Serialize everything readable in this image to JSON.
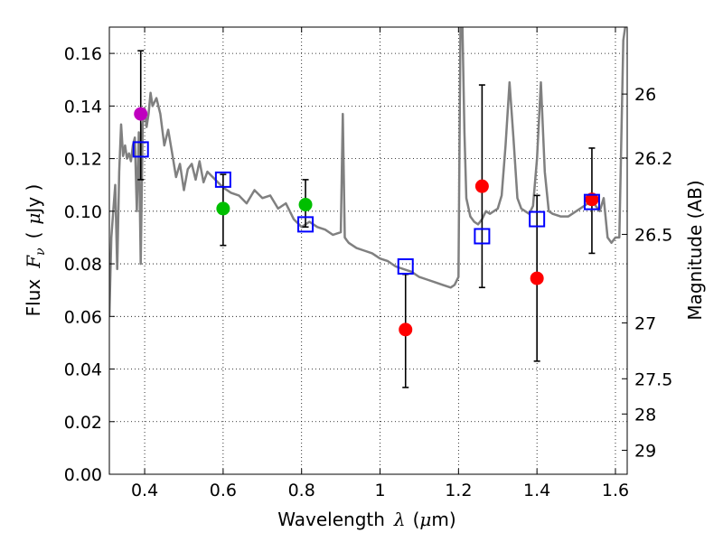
{
  "chart_data": {
    "type": "scatter",
    "xlabel_prefix": "Wavelength",
    "xlabel_symbol": "λ",
    "xlabel_unit_open": "(",
    "xlabel_unit_mu": "μ",
    "xlabel_unit_rest": "m)",
    "ylabel_prefix": "Flux",
    "ylabel_symbol": "F",
    "ylabel_sub": "ν",
    "ylabel_unit_open": "(",
    "ylabel_unit_mu": "μ",
    "ylabel_unit_rest": "Jy )",
    "y2label": "Magnitude (AB)",
    "xlim": [
      0.31,
      1.63
    ],
    "ylim": [
      0.0,
      0.17
    ],
    "xticks": [
      0.4,
      0.6,
      0.8,
      1.0,
      1.2,
      1.4,
      1.6
    ],
    "xtick_labels": [
      "0.4",
      "0.6",
      "0.8",
      "1",
      "1.2",
      "1.4",
      "1.6"
    ],
    "yticks": [
      0.0,
      0.02,
      0.04,
      0.06,
      0.08,
      0.1,
      0.12,
      0.14,
      0.16
    ],
    "ytick_labels": [
      "0.00",
      "0.02",
      "0.04",
      "0.06",
      "0.08",
      "0.10",
      "0.12",
      "0.14",
      "0.16"
    ],
    "y2ticks": [
      26,
      26.2,
      26.5,
      27,
      27.5,
      28,
      29
    ],
    "y2tick_labels": [
      "26",
      "26.2",
      "26.5",
      "27",
      "27.5",
      "28",
      "29"
    ],
    "grid": true,
    "observed": [
      {
        "x": 0.39,
        "y": 0.137,
        "err_low": 0.112,
        "err_high": 0.161,
        "color": "#bf00bf"
      },
      {
        "x": 0.6,
        "y": 0.101,
        "err_low": 0.087,
        "err_high": 0.114,
        "color": "#00bf00"
      },
      {
        "x": 0.81,
        "y": 0.1025,
        "err_low": 0.094,
        "err_high": 0.112,
        "color": "#00bf00"
      },
      {
        "x": 1.065,
        "y": 0.055,
        "err_low": 0.033,
        "err_high": 0.076,
        "color": "#ff0000"
      },
      {
        "x": 1.26,
        "y": 0.1095,
        "err_low": 0.071,
        "err_high": 0.148,
        "color": "#ff0000"
      },
      {
        "x": 1.4,
        "y": 0.0745,
        "err_low": 0.043,
        "err_high": 0.106,
        "color": "#ff0000"
      },
      {
        "x": 1.54,
        "y": 0.1045,
        "err_low": 0.084,
        "err_high": 0.124,
        "color": "#ff0000"
      }
    ],
    "model_photometry": {
      "color": "#0000ff",
      "points": [
        {
          "x": 0.39,
          "y": 0.1235
        },
        {
          "x": 0.6,
          "y": 0.112
        },
        {
          "x": 0.81,
          "y": 0.095
        },
        {
          "x": 1.065,
          "y": 0.079
        },
        {
          "x": 1.26,
          "y": 0.0905
        },
        {
          "x": 1.4,
          "y": 0.097
        },
        {
          "x": 1.54,
          "y": 0.1035
        }
      ]
    },
    "sed_model": {
      "color": "#808080",
      "x": [
        0.31,
        0.315,
        0.32,
        0.325,
        0.33,
        0.335,
        0.34,
        0.345,
        0.35,
        0.355,
        0.36,
        0.365,
        0.37,
        0.375,
        0.38,
        0.385,
        0.39,
        0.395,
        0.4,
        0.405,
        0.41,
        0.415,
        0.42,
        0.43,
        0.44,
        0.45,
        0.46,
        0.47,
        0.48,
        0.49,
        0.5,
        0.51,
        0.52,
        0.53,
        0.54,
        0.55,
        0.56,
        0.58,
        0.6,
        0.62,
        0.64,
        0.66,
        0.68,
        0.7,
        0.72,
        0.74,
        0.76,
        0.78,
        0.8,
        0.82,
        0.84,
        0.86,
        0.88,
        0.9,
        0.905,
        0.91,
        0.915,
        0.92,
        0.94,
        0.96,
        0.98,
        1.0,
        1.02,
        1.04,
        1.06,
        1.08,
        1.1,
        1.12,
        1.14,
        1.16,
        1.18,
        1.19,
        1.2,
        1.205,
        1.21,
        1.215,
        1.22,
        1.23,
        1.24,
        1.25,
        1.26,
        1.27,
        1.28,
        1.29,
        1.3,
        1.31,
        1.32,
        1.33,
        1.34,
        1.35,
        1.36,
        1.37,
        1.38,
        1.39,
        1.4,
        1.41,
        1.42,
        1.43,
        1.44,
        1.46,
        1.48,
        1.5,
        1.52,
        1.54,
        1.56,
        1.57,
        1.58,
        1.59,
        1.6,
        1.61,
        1.62,
        1.625
      ],
      "y": [
        0.06,
        0.09,
        0.1,
        0.11,
        0.078,
        0.115,
        0.133,
        0.121,
        0.125,
        0.12,
        0.122,
        0.119,
        0.125,
        0.128,
        0.1,
        0.13,
        0.08,
        0.133,
        0.139,
        0.132,
        0.137,
        0.145,
        0.14,
        0.143,
        0.137,
        0.125,
        0.131,
        0.122,
        0.113,
        0.118,
        0.108,
        0.116,
        0.118,
        0.112,
        0.119,
        0.111,
        0.115,
        0.112,
        0.109,
        0.107,
        0.106,
        0.103,
        0.108,
        0.105,
        0.106,
        0.101,
        0.103,
        0.097,
        0.094,
        0.096,
        0.094,
        0.093,
        0.091,
        0.092,
        0.137,
        0.09,
        0.089,
        0.088,
        0.086,
        0.085,
        0.084,
        0.082,
        0.081,
        0.079,
        0.078,
        0.077,
        0.075,
        0.074,
        0.073,
        0.072,
        0.071,
        0.072,
        0.075,
        0.17,
        0.17,
        0.13,
        0.105,
        0.098,
        0.096,
        0.095,
        0.097,
        0.1,
        0.099,
        0.1,
        0.101,
        0.106,
        0.125,
        0.149,
        0.128,
        0.105,
        0.101,
        0.1,
        0.099,
        0.102,
        0.12,
        0.149,
        0.115,
        0.1,
        0.099,
        0.098,
        0.098,
        0.1,
        0.102,
        0.104,
        0.1,
        0.105,
        0.09,
        0.088,
        0.09,
        0.09,
        0.165,
        0.17
      ]
    }
  }
}
